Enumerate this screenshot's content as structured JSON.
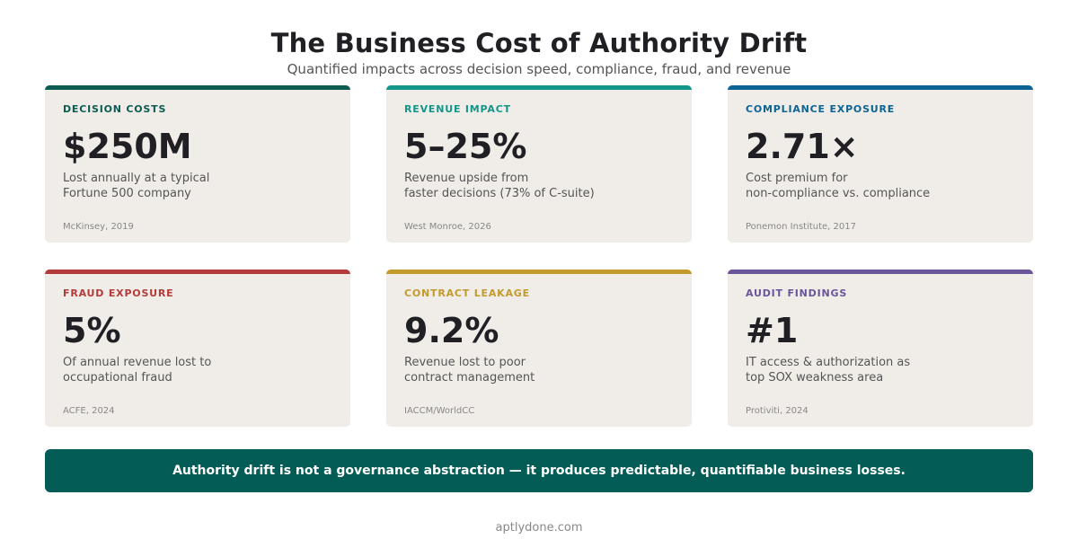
{
  "header": {
    "title": "The Business Cost of Authority Drift",
    "subtitle": "Quantified impacts across decision speed, compliance, fraud, and revenue"
  },
  "cards": [
    {
      "label": "DECISION COSTS",
      "value": "$250M",
      "desc_lines": [
        "Lost annually at a typical",
        "Fortune 500 company"
      ],
      "source": "McKinsey, 2019",
      "accent": "#0b5c50"
    },
    {
      "label": "REVENUE IMPACT",
      "value": "5–25%",
      "desc_lines": [
        "Revenue upside from",
        "faster decisions (73% of C-suite)"
      ],
      "source": "West Monroe, 2026",
      "accent": "#13968a"
    },
    {
      "label": "COMPLIANCE EXPOSURE",
      "value": "2.71×",
      "desc_lines": [
        "Cost premium for",
        "non-compliance vs. compliance"
      ],
      "source": "Ponemon Institute, 2017",
      "accent": "#0d6494"
    },
    {
      "label": "FRAUD EXPOSURE",
      "value": "5%",
      "desc_lines": [
        "Of annual revenue lost to",
        "occupational fraud"
      ],
      "source": "ACFE, 2024",
      "accent": "#b53a3a"
    },
    {
      "label": "CONTRACT LEAKAGE",
      "value": "9.2%",
      "desc_lines": [
        "Revenue lost to poor",
        "contract management"
      ],
      "source": "IACCM/WorldCC",
      "accent": "#c49a2a"
    },
    {
      "label": "AUDIT FINDINGS",
      "value": "#1",
      "desc_lines": [
        "IT access & authorization as",
        "top SOX weakness area"
      ],
      "source": "Protiviti, 2024",
      "accent": "#6a559a"
    }
  ],
  "banner": {
    "text": "Authority drift is not a governance abstraction — it produces predictable, quantifiable business losses."
  },
  "footer": {
    "text": "aptlydone.com"
  }
}
